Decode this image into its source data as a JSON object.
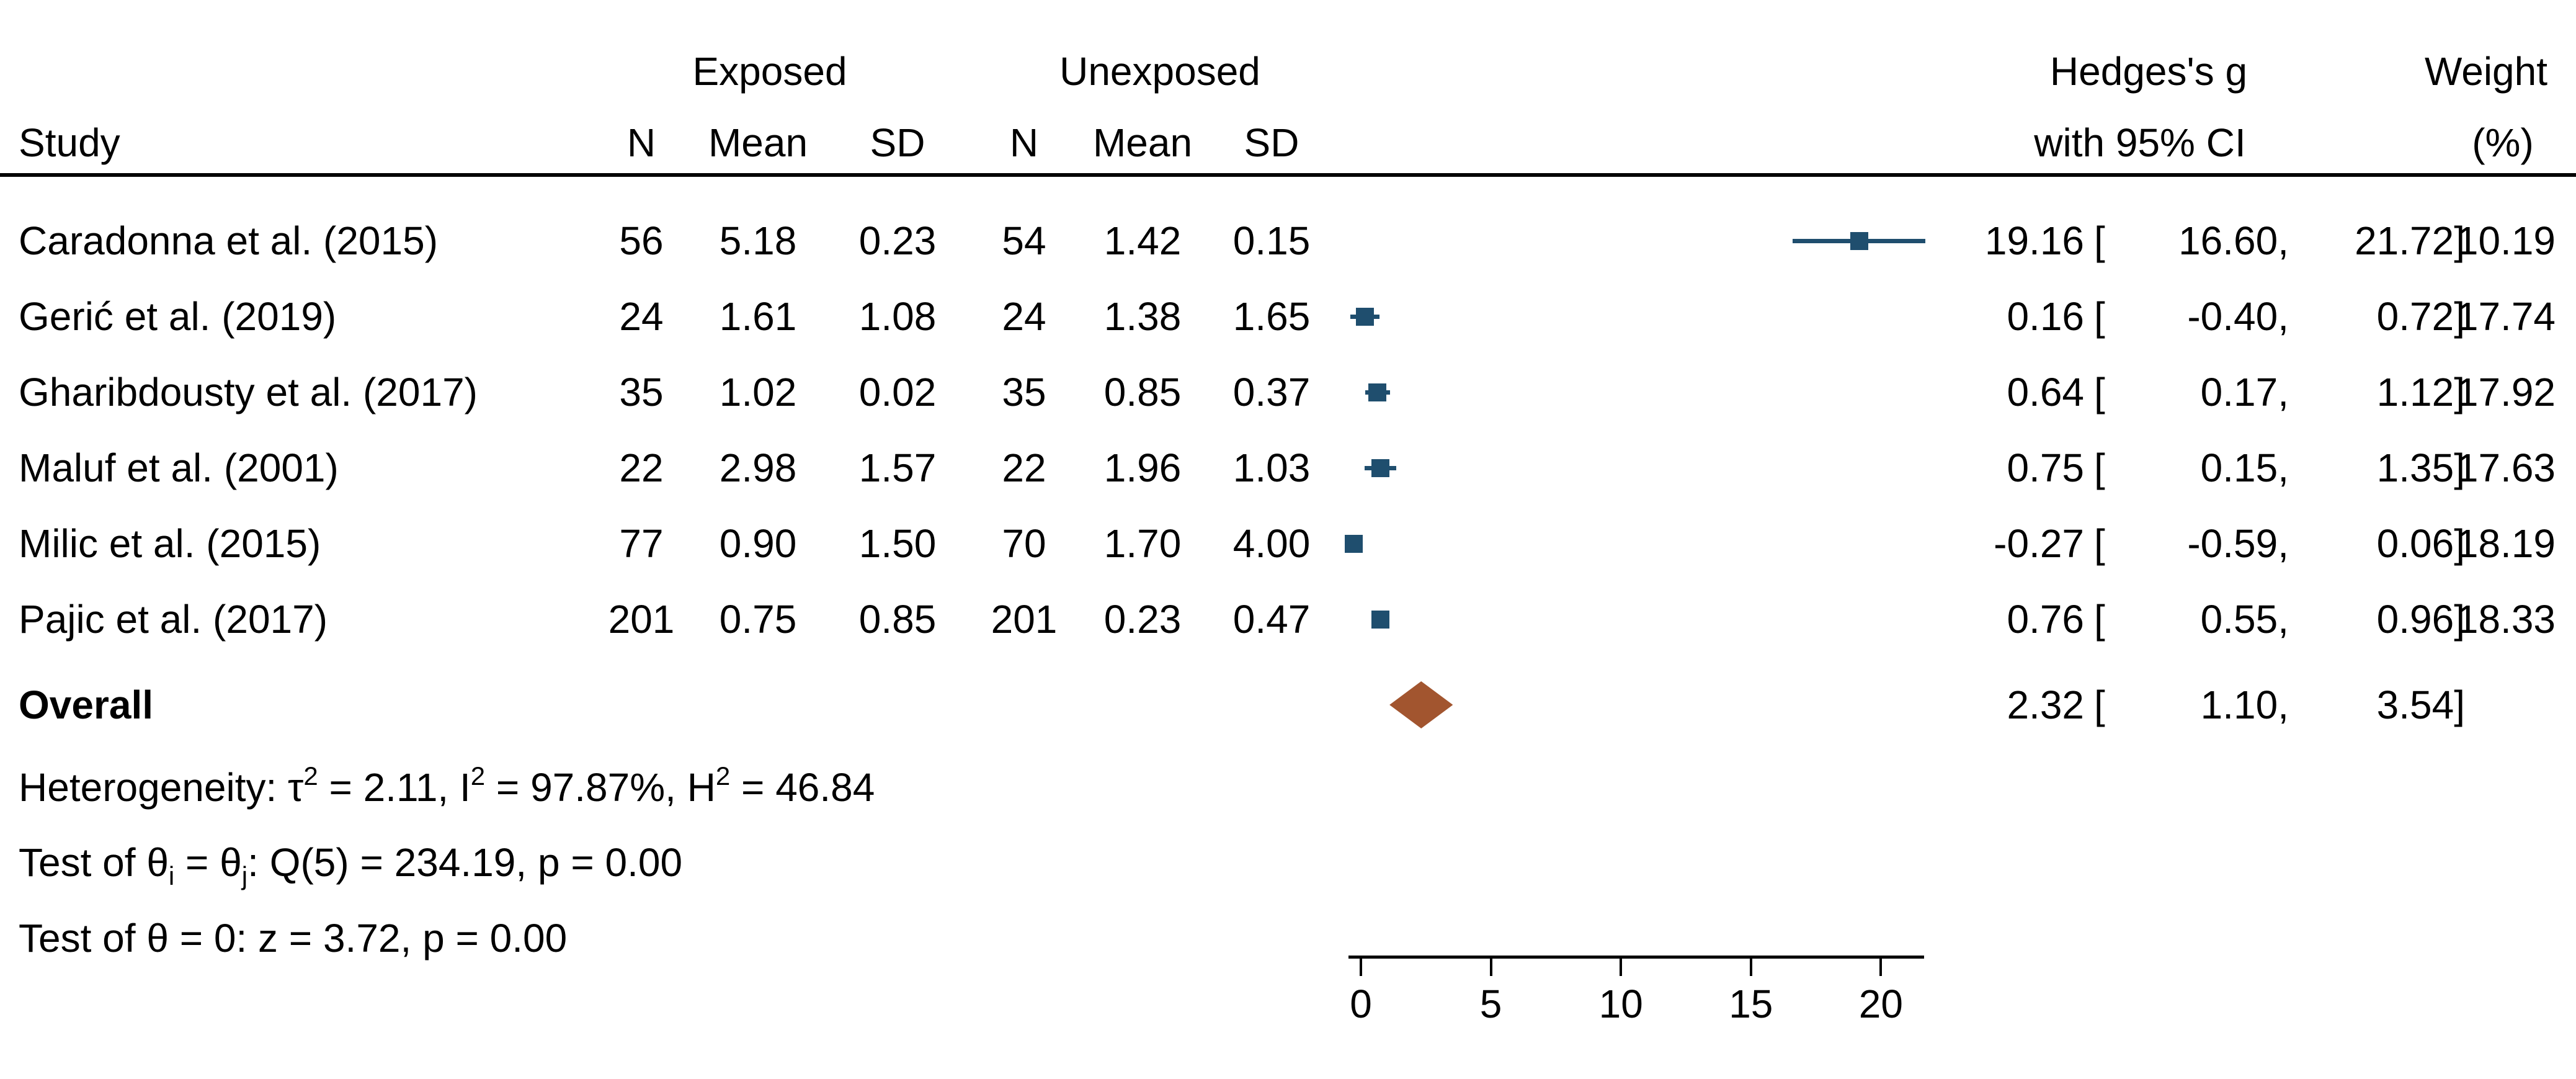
{
  "header": {
    "group_exposed": "Exposed",
    "group_unexposed": "Unexposed",
    "effect_line1": "Hedges's g",
    "effect_line2": "with 95% CI",
    "weight_line1": "Weight",
    "weight_line2": "(%)",
    "study": "Study",
    "n": "N",
    "mean": "Mean",
    "sd": "SD"
  },
  "punct": {
    "open": "[",
    "comma": ",",
    "close": "]"
  },
  "notes": {
    "het_pre": "Heterogeneity: τ",
    "sup_two": "2",
    "het_mid1": " = 2.11, I",
    "het_mid2": " = 97.87%, H",
    "het_end": " = 46.84",
    "q_pre": "Test of θ",
    "sub_i": "i",
    "q_mid": " = θ",
    "sub_j": "j",
    "q_end": ": Q(5) = 234.19, p = 0.00",
    "z_line": "Test of θ = 0: z = 3.72, p = 0.00"
  },
  "colors": {
    "marker": "#1F4E6E",
    "diamond": "#A2552F",
    "axis": "#000000"
  },
  "chart_data": {
    "type": "scatter",
    "subtype": "forest-plot",
    "effect_measure": "Hedges's g with 95% CI",
    "x_axis": {
      "ticks": [
        0,
        5,
        10,
        15,
        20
      ],
      "range": [
        -0.7,
        21.9
      ],
      "grid": false
    },
    "studies": [
      {
        "name": "Caradonna et al. (2015)",
        "n_exposed": "56",
        "mean_exposed": "5.18",
        "sd_exposed": "0.23",
        "n_unexposed": "54",
        "mean_unexposed": "1.42",
        "sd_unexposed": "0.15",
        "effect": 19.16,
        "ci_low": 16.6,
        "ci_high": 21.72,
        "weight": 10.19,
        "effect_text": "19.16",
        "ci_low_text": "16.60",
        "ci_high_text": "21.72",
        "weight_text": "10.19"
      },
      {
        "name": "Gerić et al. (2019)",
        "n_exposed": "24",
        "mean_exposed": "1.61",
        "sd_exposed": "1.08",
        "n_unexposed": "24",
        "mean_unexposed": "1.38",
        "sd_unexposed": "1.65",
        "effect": 0.16,
        "ci_low": -0.4,
        "ci_high": 0.72,
        "weight": 17.74,
        "effect_text": "0.16",
        "ci_low_text": "-0.40",
        "ci_high_text": "0.72",
        "weight_text": "17.74"
      },
      {
        "name": "Gharibdousty et al. (2017)",
        "n_exposed": "35",
        "mean_exposed": "1.02",
        "sd_exposed": "0.02",
        "n_unexposed": "35",
        "mean_unexposed": "0.85",
        "sd_unexposed": "0.37",
        "effect": 0.64,
        "ci_low": 0.17,
        "ci_high": 1.12,
        "weight": 17.92,
        "effect_text": "0.64",
        "ci_low_text": "0.17",
        "ci_high_text": "1.12",
        "weight_text": "17.92"
      },
      {
        "name": "Maluf et al. (2001)",
        "n_exposed": "22",
        "mean_exposed": "2.98",
        "sd_exposed": "1.57",
        "n_unexposed": "22",
        "mean_unexposed": "1.96",
        "sd_unexposed": "1.03",
        "effect": 0.75,
        "ci_low": 0.15,
        "ci_high": 1.35,
        "weight": 17.63,
        "effect_text": "0.75",
        "ci_low_text": "0.15",
        "ci_high_text": "1.35",
        "weight_text": "17.63"
      },
      {
        "name": "Milic et al. (2015)",
        "n_exposed": "77",
        "mean_exposed": "0.90",
        "sd_exposed": "1.50",
        "n_unexposed": "70",
        "mean_unexposed": "1.70",
        "sd_unexposed": "4.00",
        "effect": -0.27,
        "ci_low": -0.59,
        "ci_high": 0.06,
        "weight": 18.19,
        "effect_text": "-0.27",
        "ci_low_text": "-0.59",
        "ci_high_text": "0.06",
        "weight_text": "18.19"
      },
      {
        "name": "Pajic et al. (2017)",
        "n_exposed": "201",
        "mean_exposed": "0.75",
        "sd_exposed": "0.85",
        "n_unexposed": "201",
        "mean_unexposed": "0.23",
        "sd_unexposed": "0.47",
        "effect": 0.76,
        "ci_low": 0.55,
        "ci_high": 0.96,
        "weight": 18.33,
        "effect_text": "0.76",
        "ci_low_text": "0.55",
        "ci_high_text": "0.96",
        "weight_text": "18.33"
      }
    ],
    "overall": {
      "label": "Overall",
      "effect": 2.32,
      "ci_low": 1.1,
      "ci_high": 3.54,
      "effect_text": "2.32",
      "ci_low_text": "1.10",
      "ci_high_text": "3.54"
    },
    "heterogeneity": {
      "tau2": 2.11,
      "I2_pct": 97.87,
      "H2": 46.84
    },
    "test_Q": {
      "df": 5,
      "Q": 234.19,
      "p": "0.00"
    },
    "test_z": {
      "z": 3.72,
      "p": "0.00"
    }
  }
}
